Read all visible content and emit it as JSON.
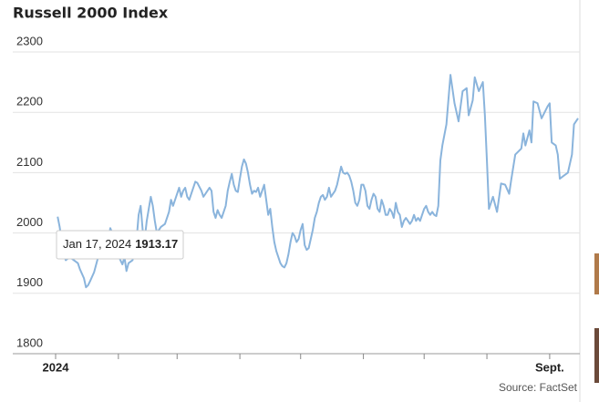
{
  "chart_data": {
    "type": "line",
    "title": "Russell 2000 Index",
    "source": "Source: FactSet",
    "color": "#8ab4dc",
    "grid": true,
    "ylim": [
      1800,
      2300
    ],
    "yticks": [
      1800,
      1900,
      2000,
      2100,
      2200,
      2300
    ],
    "xlim": [
      0,
      258
    ],
    "xticks": [
      {
        "value": 0,
        "label": "2024"
      },
      {
        "value": 244,
        "label": "Sept."
      }
    ],
    "minor_xticks": [
      31,
      60,
      91,
      121,
      152,
      182,
      213
    ],
    "tooltip": {
      "date": "Jan 17, 2024",
      "value": 1913.17
    },
    "x": [
      1,
      2,
      4,
      5,
      7,
      9,
      11,
      12,
      14,
      15,
      16,
      17,
      19,
      21,
      23,
      24,
      26,
      27,
      28,
      30,
      32,
      33,
      34,
      35,
      36,
      38,
      39,
      40,
      41,
      42,
      43,
      44,
      45,
      46,
      47,
      48,
      49,
      50,
      52,
      54,
      55,
      56,
      57,
      58,
      60,
      61,
      62,
      63,
      64,
      65,
      66,
      68,
      69,
      70,
      72,
      73,
      74,
      76,
      77,
      78,
      79,
      80,
      81,
      82,
      84,
      85,
      86,
      87,
      88,
      89,
      90,
      91,
      92,
      93,
      94,
      95,
      96,
      97,
      98,
      99,
      100,
      101,
      102,
      103,
      104,
      105,
      106,
      107,
      108,
      109,
      110,
      111,
      112,
      113,
      114,
      115,
      116,
      117,
      118,
      119,
      120,
      121,
      122,
      123,
      124,
      125,
      126,
      127,
      128,
      129,
      130,
      131,
      132,
      133,
      134,
      135,
      136,
      137,
      138,
      139,
      140,
      141,
      142,
      143,
      144,
      145,
      146,
      147,
      148,
      149,
      150,
      151,
      152,
      153,
      154,
      155,
      156,
      157,
      158,
      159,
      160,
      161,
      162,
      163,
      164,
      165,
      166,
      167,
      168,
      169,
      170,
      171,
      172,
      173,
      174,
      175,
      176,
      177,
      178,
      179,
      180,
      181,
      182,
      183,
      184,
      185,
      186,
      187,
      188,
      189,
      190,
      191,
      193,
      195,
      197,
      199,
      201,
      203,
      204,
      206,
      207,
      209,
      211,
      212,
      213,
      214,
      216,
      218,
      220,
      222,
      224,
      225,
      227,
      230,
      231,
      232,
      234,
      235,
      236,
      238,
      240,
      243,
      244,
      245,
      247,
      248,
      249,
      251,
      253,
      255,
      256,
      258
    ],
    "values": [
      2027,
      2010,
      1965,
      1955,
      1960,
      1955,
      1950,
      1940,
      1925,
      1910,
      1913.17,
      1920,
      1935,
      1960,
      1975,
      1990,
      1985,
      2008,
      2000,
      1970,
      1955,
      1948,
      1960,
      1937,
      1950,
      1955,
      1970,
      1990,
      2030,
      2045,
      2005,
      1990,
      2020,
      2040,
      2060,
      2045,
      2020,
      2000,
      2010,
      2015,
      2025,
      2035,
      2055,
      2045,
      2065,
      2075,
      2060,
      2070,
      2075,
      2060,
      2055,
      2075,
      2085,
      2083,
      2070,
      2060,
      2065,
      2075,
      2070,
      2035,
      2025,
      2038,
      2030,
      2025,
      2045,
      2070,
      2085,
      2098,
      2080,
      2070,
      2068,
      2090,
      2110,
      2122,
      2115,
      2100,
      2080,
      2065,
      2070,
      2068,
      2075,
      2060,
      2070,
      2080,
      2055,
      2030,
      2040,
      2010,
      1985,
      1970,
      1960,
      1950,
      1945,
      1943,
      1950,
      1965,
      1985,
      2000,
      1995,
      1985,
      1990,
      2005,
      2015,
      1980,
      1972,
      1975,
      1990,
      2005,
      2025,
      2035,
      2050,
      2060,
      2063,
      2055,
      2060,
      2075,
      2060,
      2065,
      2070,
      2080,
      2095,
      2110,
      2100,
      2098,
      2100,
      2095,
      2085,
      2070,
      2050,
      2045,
      2055,
      2080,
      2080,
      2070,
      2045,
      2040,
      2055,
      2065,
      2060,
      2040,
      2035,
      2055,
      2045,
      2030,
      2030,
      2040,
      2035,
      2025,
      2050,
      2035,
      2030,
      2010,
      2020,
      2025,
      2020,
      2015,
      2020,
      2030,
      2020,
      2025,
      2020,
      2030,
      2040,
      2045,
      2035,
      2030,
      2035,
      2030,
      2028,
      2045,
      2120,
      2145,
      2180,
      2262,
      2215,
      2185,
      2235,
      2240,
      2195,
      2220,
      2258,
      2235,
      2250,
      2195,
      2120,
      2040,
      2060,
      2035,
      2082,
      2080,
      2065,
      2088,
      2130,
      2140,
      2165,
      2145,
      2170,
      2150,
      2218,
      2215,
      2190,
      2210,
      2215,
      2150,
      2145,
      2130,
      2090,
      2095,
      2100,
      2130,
      2180,
      2190
    ]
  }
}
